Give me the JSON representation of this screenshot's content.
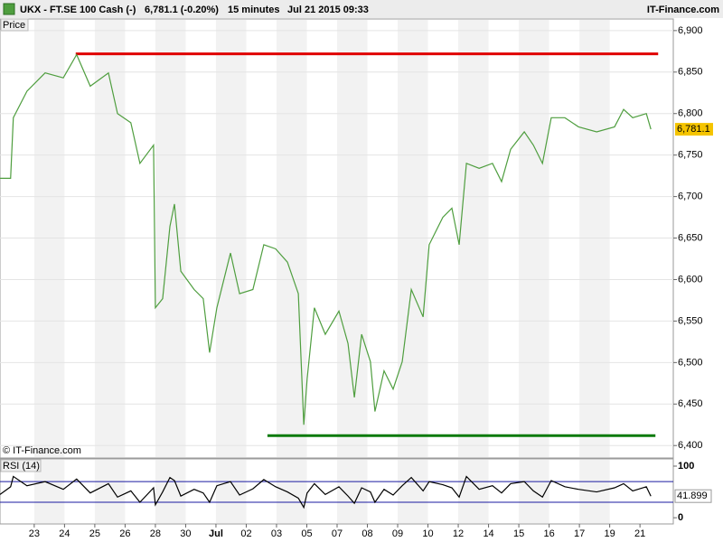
{
  "header": {
    "instrument": "UKX - FT.SE 100 Cash (-)",
    "quote": "6,781.1 (-0.20%)",
    "interval": "15 minutes",
    "timestamp": "Jul 21 2015 09:33",
    "brand": "IT-Finance.com"
  },
  "chart_data": [
    {
      "type": "line",
      "panel_label": "Price",
      "watermark": "© IT-Finance.com",
      "color": "#4f9e3f",
      "x": [
        -1.13,
        -0.78,
        -0.69,
        -0.24,
        0.36,
        0.96,
        1.4,
        1.85,
        2.45,
        2.75,
        3.19,
        3.49,
        3.94,
        4.0,
        4.24,
        4.48,
        4.63,
        4.84,
        5.28,
        5.58,
        5.79,
        6.03,
        6.48,
        6.78,
        7.22,
        7.58,
        7.97,
        8.36,
        8.72,
        8.9,
        9.01,
        9.25,
        9.61,
        10.06,
        10.36,
        10.57,
        10.81,
        11.1,
        11.25,
        11.55,
        11.85,
        12.15,
        12.45,
        12.84,
        13.04,
        13.49,
        13.79,
        14.03,
        14.27,
        14.69,
        15.13,
        15.43,
        15.73,
        16.18,
        16.48,
        16.78,
        17.07,
        17.52,
        17.97,
        18.57,
        19.16,
        19.46,
        19.76,
        20.21,
        20.36
      ],
      "series": [
        {
          "name": "UKX",
          "color": "#4f9e3f",
          "values": [
            6722,
            6722,
            6795,
            6827,
            6849,
            6843,
            6871,
            6833,
            6849,
            6800,
            6789,
            6740,
            6762,
            6566,
            6577,
            6664,
            6691,
            6610,
            6588,
            6577,
            6512,
            6566,
            6632,
            6583,
            6588,
            6642,
            6637,
            6621,
            6583,
            6425,
            6480,
            6566,
            6534,
            6562,
            6523,
            6458,
            6534,
            6501,
            6441,
            6490,
            6468,
            6501,
            6588,
            6555,
            6642,
            6675,
            6686,
            6642,
            6740,
            6734,
            6740,
            6718,
            6757,
            6778,
            6762,
            6740,
            6795,
            6795,
            6784,
            6778,
            6784,
            6805,
            6795,
            6800,
            6781.1
          ]
        }
      ],
      "xlim": [
        -1.13,
        21.1
      ],
      "ylim": [
        6385,
        6914
      ],
      "xticks": [
        {
          "value": 0,
          "label": "23"
        },
        {
          "value": 1,
          "label": "24"
        },
        {
          "value": 2,
          "label": "25"
        },
        {
          "value": 3,
          "label": "26"
        },
        {
          "value": 4,
          "label": "28"
        },
        {
          "value": 5,
          "label": "30"
        },
        {
          "value": 6,
          "label": "Jul"
        },
        {
          "value": 7,
          "label": "02"
        },
        {
          "value": 8,
          "label": "03"
        },
        {
          "value": 9,
          "label": "05"
        },
        {
          "value": 10,
          "label": "07"
        },
        {
          "value": 11,
          "label": "08"
        },
        {
          "value": 12,
          "label": "09"
        },
        {
          "value": 13,
          "label": "10"
        },
        {
          "value": 14,
          "label": "12"
        },
        {
          "value": 15,
          "label": "14"
        },
        {
          "value": 16,
          "label": "15"
        },
        {
          "value": 17,
          "label": "16"
        },
        {
          "value": 18,
          "label": "17"
        },
        {
          "value": 19,
          "label": "19"
        },
        {
          "value": 20,
          "label": "21"
        }
      ],
      "yticks": [
        {
          "value": 6400,
          "label": "6,400"
        },
        {
          "value": 6450,
          "label": "6,450"
        },
        {
          "value": 6500,
          "label": "6,500"
        },
        {
          "value": 6550,
          "label": "6,550"
        },
        {
          "value": 6600,
          "label": "6,600"
        },
        {
          "value": 6650,
          "label": "6,650"
        },
        {
          "value": 6700,
          "label": "6,700"
        },
        {
          "value": 6750,
          "label": "6,750"
        },
        {
          "value": 6800,
          "label": "6,800"
        },
        {
          "value": 6850,
          "label": "6,850"
        },
        {
          "value": 6900,
          "label": "6,900"
        }
      ],
      "last_price": {
        "value": 6781.1,
        "label": "6,781.1"
      },
      "lines": [
        {
          "y": 6872,
          "x": [
            1.37,
            20.6
          ],
          "color": "#e00000"
        },
        {
          "y": 6412,
          "x": [
            7.7,
            20.51
          ],
          "color": "#0a7a0a"
        }
      ],
      "grid": true
    },
    {
      "type": "line",
      "panel_label": "RSI (14)",
      "color": "#000000",
      "x": [
        -1.13,
        -0.78,
        -0.69,
        -0.24,
        0.36,
        0.96,
        1.4,
        1.85,
        2.45,
        2.75,
        3.19,
        3.49,
        3.94,
        4.0,
        4.24,
        4.48,
        4.63,
        4.84,
        5.28,
        5.58,
        5.79,
        6.03,
        6.48,
        6.78,
        7.22,
        7.58,
        7.97,
        8.36,
        8.72,
        8.9,
        9.01,
        9.25,
        9.61,
        10.06,
        10.36,
        10.57,
        10.81,
        11.1,
        11.25,
        11.55,
        11.85,
        12.15,
        12.45,
        12.84,
        13.04,
        13.49,
        13.79,
        14.03,
        14.27,
        14.69,
        15.13,
        15.43,
        15.73,
        16.18,
        16.48,
        16.78,
        17.07,
        17.52,
        17.97,
        18.57,
        19.16,
        19.46,
        19.76,
        20.21,
        20.36
      ],
      "series": [
        {
          "name": "RSI (14)",
          "color": "#000000",
          "values": [
            45,
            60,
            80,
            62,
            70,
            55,
            75,
            48,
            66,
            40,
            52,
            30,
            58,
            25,
            50,
            78,
            72,
            42,
            55,
            48,
            30,
            62,
            70,
            44,
            56,
            74,
            60,
            50,
            38,
            20,
            48,
            66,
            45,
            60,
            42,
            28,
            58,
            50,
            30,
            55,
            44,
            62,
            78,
            52,
            70,
            64,
            58,
            40,
            80,
            55,
            62,
            48,
            66,
            70,
            52,
            40,
            72,
            60,
            55,
            50,
            58,
            66,
            52,
            60,
            41.899
          ]
        }
      ],
      "xlim": [
        -1.13,
        21.1
      ],
      "ylim": [
        -12,
        114
      ],
      "yticks": [
        100,
        0
      ],
      "levels": [
        70,
        30
      ],
      "level_color": "#1a1aa0",
      "last_value": {
        "value": 41.899,
        "label": "41.899"
      }
    }
  ]
}
